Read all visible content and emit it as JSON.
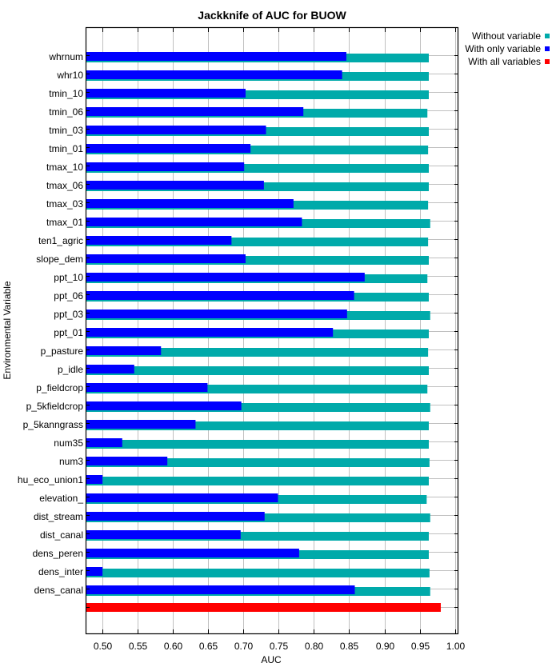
{
  "chart_data": {
    "type": "bar",
    "orientation": "horizontal",
    "title": "Jackknife of AUC for BUOW",
    "xlabel": "AUC",
    "ylabel": "Environmental Variable",
    "xlim": [
      0.476,
      1.005
    ],
    "xticks": [
      "0.50",
      "0.55",
      "0.60",
      "0.65",
      "0.70",
      "0.75",
      "0.80",
      "0.85",
      "0.90",
      "0.95",
      "1.00"
    ],
    "grid": true,
    "legend_position": "top-right, outside plot",
    "legend": [
      {
        "name": "Without variable",
        "color": "#00AAAA"
      },
      {
        "name": "With only variable",
        "color": "#0000FF"
      },
      {
        "name": "With all variables",
        "color": "#FF0000"
      }
    ],
    "categories": [
      "whrnum",
      "whr10",
      "tmin_10",
      "tmin_06",
      "tmin_03",
      "tmin_01",
      "tmax_10",
      "tmax_06",
      "tmax_03",
      "tmax_01",
      "ten1_agric",
      "slope_dem",
      "ppt_10",
      "ppt_06",
      "ppt_03",
      "ppt_01",
      "p_pasture",
      "p_idle",
      "p_fieldcrop",
      "p_5kfieldcrop",
      "p_5kanngrass",
      "num35",
      "num3",
      "hu_eco_union1",
      "elevation_",
      "dist_stream",
      "dist_canal",
      "dens_peren",
      "dens_inter",
      "dens_canal"
    ],
    "series": [
      {
        "name": "Without variable",
        "color": "#00AAAA",
        "values": [
          0.963,
          0.963,
          0.963,
          0.961,
          0.963,
          0.962,
          0.963,
          0.963,
          0.962,
          0.965,
          0.962,
          0.963,
          0.961,
          0.963,
          0.965,
          0.963,
          0.962,
          0.963,
          0.961,
          0.965,
          0.963,
          0.963,
          0.964,
          0.963,
          0.96,
          0.965,
          0.963,
          0.963,
          0.964,
          0.965
        ]
      },
      {
        "name": "With only variable",
        "color": "#0000FF",
        "values": [
          0.846,
          0.84,
          0.703,
          0.785,
          0.732,
          0.71,
          0.701,
          0.729,
          0.771,
          0.783,
          0.683,
          0.703,
          0.872,
          0.857,
          0.847,
          0.827,
          0.583,
          0.545,
          0.649,
          0.697,
          0.632,
          0.528,
          0.592,
          0.5,
          0.749,
          0.73,
          0.696,
          0.779,
          0.5,
          0.858
        ]
      }
    ],
    "all_variables": {
      "name": "With all variables",
      "color": "#FF0000",
      "value": 0.98
    }
  }
}
